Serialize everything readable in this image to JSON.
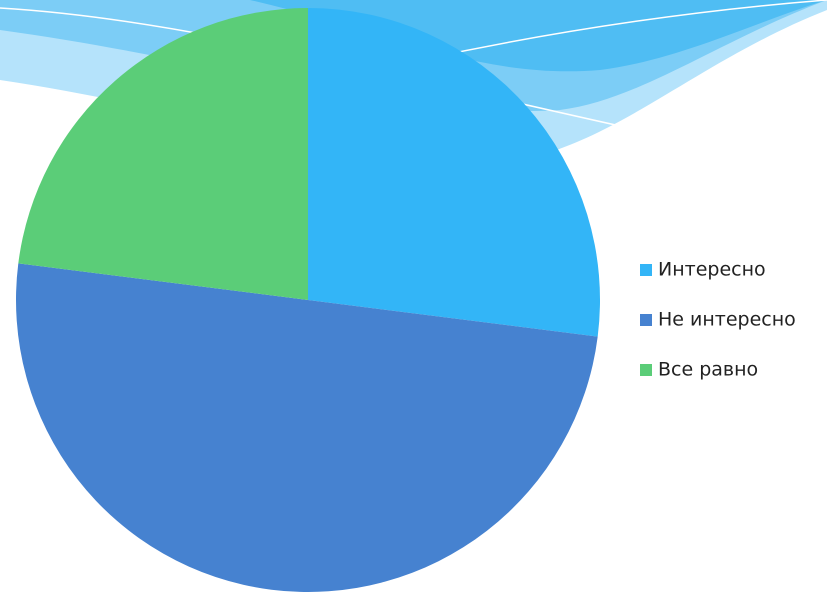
{
  "chart_data": {
    "type": "pie",
    "categories": [
      "Интересно",
      "Не интересно",
      "Все равно"
    ],
    "values": [
      27,
      50,
      23
    ],
    "colors": [
      "#33b5f7",
      "#4682d0",
      "#5bcd78"
    ],
    "legend": "right"
  }
}
